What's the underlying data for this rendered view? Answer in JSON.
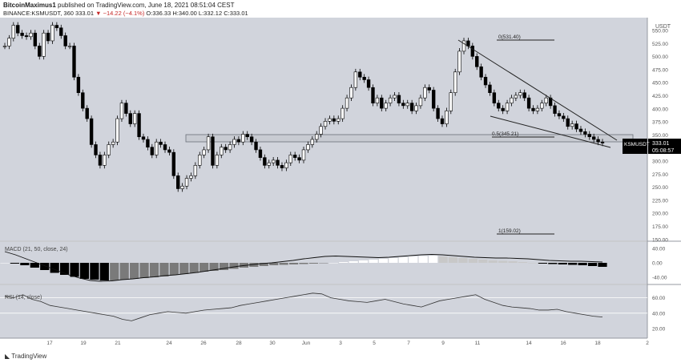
{
  "header": {
    "author": "BitcoinMaximus1",
    "published": "published on TradingView.com, June 18, 2021 08:51:04 CEST",
    "symbol": "BINANCE:KSMUSDT, 360",
    "last": "333.01",
    "change": "−14.22 (−4.1%)",
    "ohlc_o": "O:336.33",
    "ohlc_h": "H:340.00",
    "ohlc_l": "L:332.12",
    "ohlc_c": "C:333.01"
  },
  "price_axis": {
    "unit_label": "USDT",
    "ticks": [
      "550.00",
      "525.00",
      "500.00",
      "475.00",
      "450.00",
      "425.00",
      "400.00",
      "375.00",
      "350.00",
      "325.00",
      "300.00",
      "275.00",
      "250.00",
      "225.00",
      "200.00",
      "175.00",
      "150.00"
    ],
    "price_tag": "KSMUSDT",
    "price_value": "333.01",
    "countdown": "05:08:57"
  },
  "macd": {
    "label": "MACD (21, 50, close, 24)",
    "ticks": [
      "40.00",
      "0.00",
      "-40.00"
    ]
  },
  "rsi": {
    "label": "RSI (14, close)",
    "ticks": [
      "60.00",
      "40.00",
      "20.00"
    ]
  },
  "x_axis": [
    "17",
    "19",
    "21",
    "24",
    "26",
    "28",
    "30",
    "Jun",
    "3",
    "5",
    "7",
    "9",
    "11",
    "14",
    "16",
    "18",
    "2"
  ],
  "fib": {
    "level0": "0(531.40)",
    "level05": "0.5(345.21)",
    "level1": "1(159.02)"
  },
  "footer": {
    "brand": "TradingView"
  },
  "colors": {
    "background": "#d1d4dc",
    "up_candle": "#ffffff",
    "down_candle": "#000000"
  },
  "chart_data": {
    "type": "candlestick",
    "symbol": "KSMUSDT",
    "interval": "360",
    "ylim": [
      150,
      560
    ],
    "fibonacci": [
      {
        "level": 0,
        "price": 531.4
      },
      {
        "level": 0.5,
        "price": 345.21
      },
      {
        "level": 1,
        "price": 159.02
      }
    ],
    "support_zone": [
      340,
      355
    ],
    "close_series": [
      520,
      535,
      560,
      545,
      540,
      538,
      545,
      520,
      500,
      545,
      530,
      560,
      555,
      540,
      520,
      520,
      460,
      430,
      400,
      380,
      330,
      310,
      290,
      310,
      330,
      335,
      380,
      410,
      390,
      370,
      390,
      345,
      340,
      325,
      310,
      335,
      330,
      320,
      315,
      270,
      245,
      250,
      265,
      270,
      290,
      310,
      320,
      345,
      290,
      310,
      325,
      320,
      330,
      340,
      335,
      350,
      345,
      335,
      320,
      305,
      290,
      295,
      300,
      290,
      285,
      295,
      310,
      305,
      300,
      320,
      330,
      340,
      350,
      365,
      375,
      380,
      375,
      380,
      400,
      420,
      440,
      470,
      460,
      455,
      440,
      410,
      420,
      400,
      410,
      420,
      425,
      410,
      405,
      410,
      395,
      405,
      420,
      440,
      435,
      400,
      380,
      370,
      395,
      430,
      470,
      510,
      530,
      520,
      500,
      480,
      460,
      445,
      430,
      410,
      400,
      395,
      410,
      420,
      425,
      430,
      420,
      400,
      395,
      400,
      410,
      420,
      405,
      390,
      385,
      380,
      365,
      370,
      360,
      355,
      350,
      345,
      340,
      335,
      333
    ],
    "macd_hist": [
      0,
      -2,
      -6,
      -12,
      -18,
      -25,
      -30,
      -35,
      -40,
      -42,
      -44,
      -44,
      -42,
      -40,
      -38,
      -36,
      -34,
      -30,
      -28,
      -25,
      -22,
      -20,
      -18,
      -15,
      -12,
      -10,
      -8,
      -6,
      -5,
      -4,
      -3,
      -2,
      -1,
      0,
      2,
      4,
      6,
      8,
      10,
      12,
      14,
      16,
      17,
      18,
      16,
      14,
      12,
      10,
      8,
      6,
      5,
      4,
      2,
      0,
      -2,
      -3,
      -4,
      -5,
      -6,
      -8,
      -10
    ],
    "macd_line": [
      28,
      20,
      10,
      0,
      -10,
      -20,
      -30,
      -38,
      -44,
      -46,
      -45,
      -42,
      -40,
      -37,
      -35,
      -32,
      -30,
      -27,
      -24,
      -20,
      -16,
      -12,
      -8,
      -5,
      -2,
      0,
      3,
      6,
      10,
      13,
      16,
      17,
      16,
      15,
      14,
      13,
      14,
      16,
      18,
      20,
      21,
      20,
      18,
      16,
      14,
      13,
      12,
      12,
      11,
      10,
      8,
      6,
      5,
      4,
      4,
      3,
      2
    ],
    "rsi_series": [
      62,
      60,
      64,
      58,
      55,
      50,
      48,
      46,
      44,
      42,
      40,
      38,
      36,
      32,
      30,
      34,
      38,
      40,
      42,
      41,
      40,
      42,
      44,
      45,
      46,
      47,
      50,
      52,
      54,
      56,
      58,
      60,
      62,
      64,
      66,
      65,
      60,
      58,
      56,
      55,
      54,
      56,
      58,
      55,
      52,
      50,
      48,
      52,
      56,
      58,
      60,
      62,
      64,
      58,
      54,
      50,
      48,
      47,
      46,
      44,
      44,
      45,
      42,
      40,
      38,
      36,
      35
    ]
  }
}
